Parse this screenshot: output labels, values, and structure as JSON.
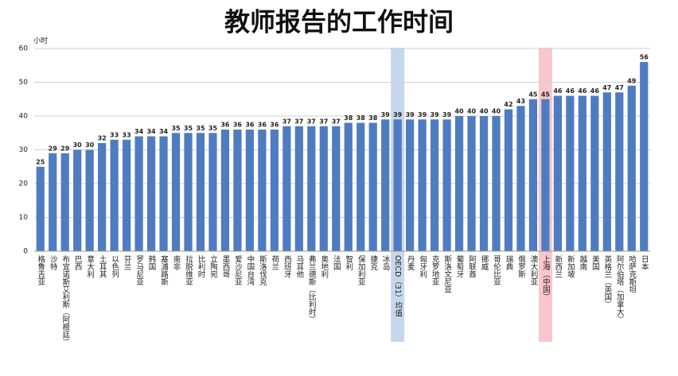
{
  "chart_data": {
    "type": "bar",
    "title": "教师报告的工作时间",
    "y_label": "小时",
    "categories": [
      "格鲁吉亚",
      "沙特",
      "布宜诺斯艾利斯（阿根廷）",
      "巴西",
      "意大利",
      "土耳其",
      "以色列",
      "芬兰",
      "罗马尼亚",
      "韩国",
      "塞浦路斯",
      "南非",
      "拉脱维亚",
      "比利时",
      "立陶宛",
      "墨西哥",
      "爱沙尼亚",
      "中国台湾",
      "斯洛伐克",
      "荷兰",
      "西班牙",
      "马耳他",
      "弗兰德斯（比利时）",
      "奥地利",
      "法国",
      "智利",
      "保加利亚",
      "捷克",
      "冰岛",
      "OECD（31）均值",
      "丹麦",
      "匈牙利",
      "克罗地亚",
      "斯洛文尼亚",
      "葡萄牙",
      "阿联酋",
      "挪威",
      "哥伦比亚",
      "瑞典",
      "俄罗斯",
      "澳大利亚",
      "上海（中国）",
      "新西兰",
      "新加坡",
      "越南",
      "美国",
      "英格兰（英国）",
      "阿尔伯塔（加拿大）",
      "哈萨克斯坦",
      "日本"
    ],
    "values": [
      25,
      29,
      29,
      30,
      30,
      32,
      33,
      33,
      34,
      34,
      34,
      35,
      35,
      35,
      35,
      36,
      36,
      36,
      36,
      36,
      37,
      37,
      37,
      37,
      37,
      38,
      38,
      38,
      39,
      39,
      39,
      39,
      39,
      39,
      40,
      40,
      40,
      40,
      42,
      43,
      45,
      45,
      46,
      46,
      46,
      46,
      47,
      47,
      49,
      56
    ],
    "color": "#4f7cc0",
    "highlights": [
      {
        "index": 29,
        "color": "#b8cde6"
      },
      {
        "index": 41,
        "color": "#f6b8be"
      }
    ],
    "ylim": [
      0,
      60
    ],
    "yticks": [
      0,
      10,
      20,
      30,
      40,
      50,
      60
    ],
    "grid": true
  }
}
